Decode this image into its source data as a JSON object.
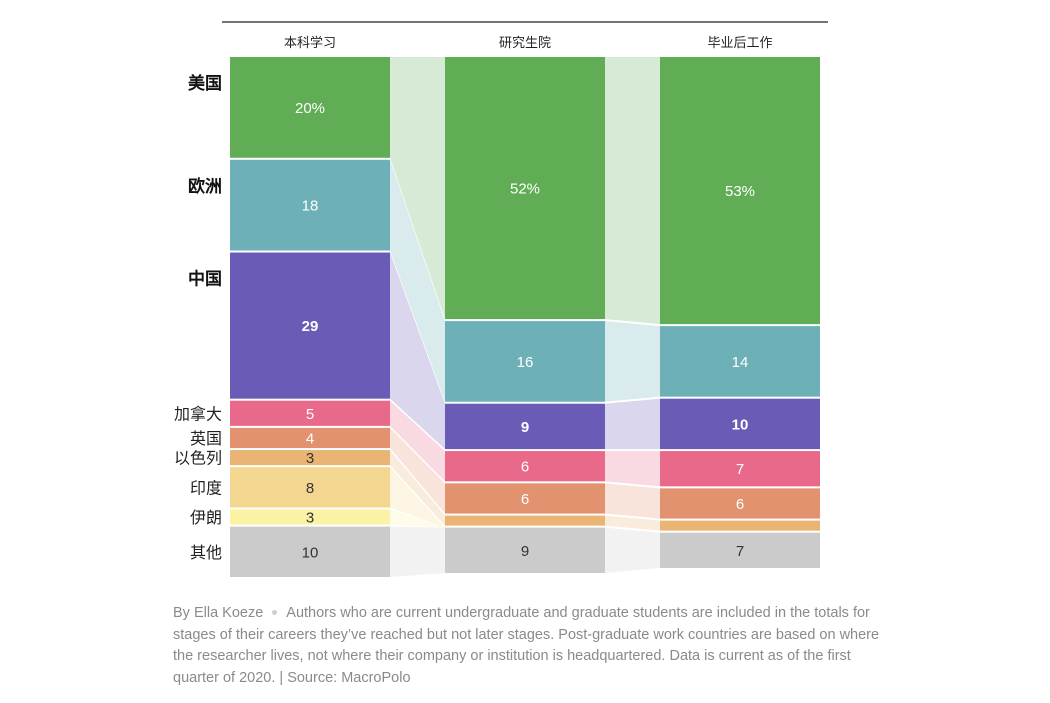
{
  "chart_data": {
    "type": "stacked-bar-alluvial",
    "stages": [
      "本科学习",
      "研究生院",
      "毕业后工作"
    ],
    "countries": [
      {
        "name": "美国",
        "bold": true,
        "color": "#61ad56",
        "labels": [
          "20%",
          "52%",
          "53%"
        ]
      },
      {
        "name": "欧洲",
        "bold": true,
        "color": "#6db0b8",
        "labels": [
          "18",
          "16",
          "14"
        ]
      },
      {
        "name": "中国",
        "bold": true,
        "color": "#6a5bb7",
        "labels": [
          "29",
          "9",
          "10"
        ]
      },
      {
        "name": "加拿大",
        "bold": false,
        "color": "#e8698a",
        "labels": [
          "5",
          "6",
          "7"
        ]
      },
      {
        "name": "英国",
        "bold": false,
        "color": "#e2926f",
        "labels": [
          "4",
          "6",
          "6"
        ]
      },
      {
        "name": "以色列",
        "bold": false,
        "color": "#eab574",
        "labels": [
          "3",
          "",
          ""
        ]
      },
      {
        "name": "印度",
        "bold": false,
        "color": "#f3d791",
        "labels": [
          "8",
          "",
          ""
        ]
      },
      {
        "name": "伊朗",
        "bold": false,
        "color": "#fbf3a3",
        "labels": [
          "3",
          "",
          ""
        ]
      },
      {
        "name": "其他",
        "bold": false,
        "color": "#cbcbcb",
        "labels": [
          "10",
          "9",
          "7"
        ]
      }
    ],
    "values": [
      [
        20,
        18,
        29,
        5,
        4,
        3,
        8,
        3,
        10
      ],
      [
        52,
        16,
        9,
        6,
        6,
        2,
        0,
        0,
        9
      ],
      [
        53,
        14,
        10,
        7,
        6,
        2,
        0,
        0,
        7
      ]
    ],
    "units": "percent"
  },
  "footer": {
    "byline": "By Ella Koeze",
    "note": "Authors who are current undergraduate and graduate students are included in the totals for stages of their careers they’ve reached but not later stages. Post-graduate work countries are based on where the researcher lives, not where their company or institution is headquartered. Data is current as of the first quarter of 2020. | Source: MacroPolo"
  }
}
